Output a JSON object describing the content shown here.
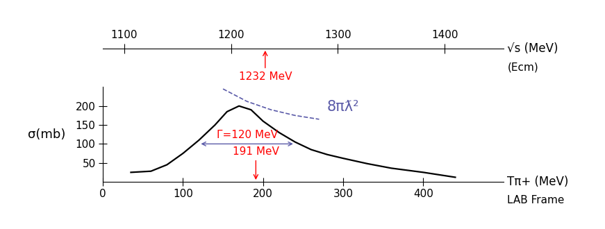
{
  "chart_data": {
    "type": "line",
    "y_label": "σ(mb)",
    "x_label": "Tπ+ (MeV)",
    "x_note": "LAB Frame",
    "x2_label": "√s (MeV)",
    "x2_note": "(Ecm)",
    "xlim": [
      0,
      500
    ],
    "xticks": [
      0,
      100,
      200,
      300,
      400
    ],
    "x2lim": [
      1080,
      1455
    ],
    "x2ticks": [
      1100,
      1200,
      1300,
      1400
    ],
    "ylim": [
      0,
      250
    ],
    "yticks": [
      50,
      100,
      150,
      200
    ],
    "series": [
      {
        "x": [
          35,
          60,
          80,
          100,
          120,
          140,
          155,
          170,
          185,
          200,
          220,
          240,
          260,
          280,
          300,
          330,
          360,
          400,
          440
        ],
        "values": [
          25,
          28,
          45,
          75,
          110,
          150,
          185,
          200,
          190,
          160,
          130,
          105,
          85,
          72,
          62,
          48,
          36,
          25,
          12
        ],
        "color": "black",
        "line_style": "solid"
      },
      {
        "name": "8πƛ²",
        "x": [
          150,
          180,
          210,
          240,
          270
        ],
        "values": [
          245,
          212,
          190,
          175,
          165
        ],
        "color": "#5a5aa8",
        "line_style": "dashed"
      }
    ],
    "annotations": [
      {
        "text": "1232 MeV",
        "x": 1232,
        "axis": "x2",
        "color": "red"
      },
      {
        "text": "191 MeV",
        "x": 191,
        "color": "red"
      },
      {
        "text": "Γ=120 MeV",
        "x": [
          120,
          240
        ],
        "y": 100,
        "color": "red"
      }
    ]
  }
}
